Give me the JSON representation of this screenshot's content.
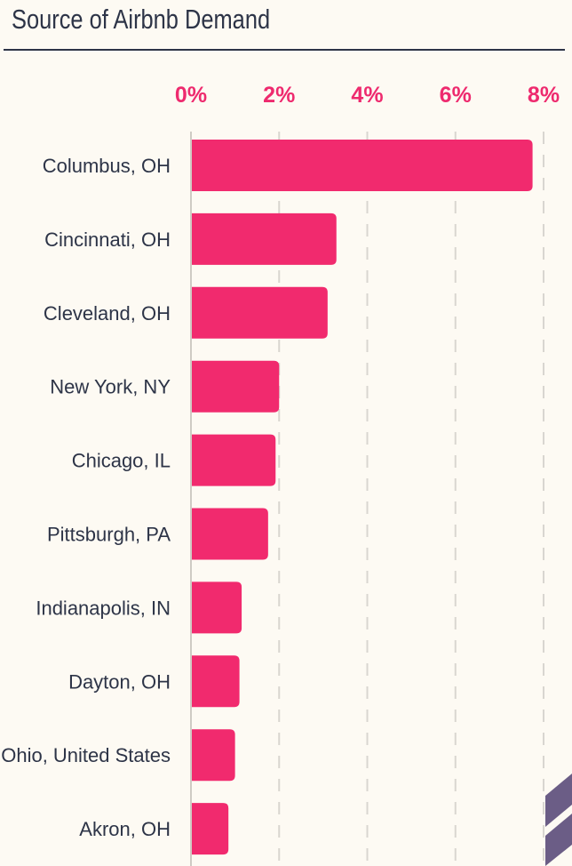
{
  "title": "Source of Airbnb Demand",
  "chart_data": {
    "type": "bar",
    "orientation": "horizontal",
    "title": "Source of Airbnb Demand",
    "xlabel": "",
    "ylabel": "",
    "xlim": [
      0,
      8
    ],
    "x_ticks": [
      "0%",
      "2%",
      "4%",
      "6%",
      "8%"
    ],
    "x_tick_values": [
      0,
      2,
      4,
      6,
      8
    ],
    "tick_position": "top",
    "grid": "vertical-dashed",
    "categories": [
      "Columbus, OH",
      "Cincinnati, OH",
      "Cleveland, OH",
      "New York, NY",
      "Chicago, IL",
      "Pittsburgh, PA",
      "Indianapolis, IN",
      "Dayton, OH",
      "Ohio, United States",
      "Akron, OH"
    ],
    "values": [
      7.75,
      3.3,
      3.1,
      2.0,
      1.92,
      1.75,
      1.15,
      1.1,
      1.0,
      0.85
    ],
    "bar_color": "#f12a6e",
    "text_color": "#2d3447",
    "tick_color": "#ee2a6e"
  }
}
